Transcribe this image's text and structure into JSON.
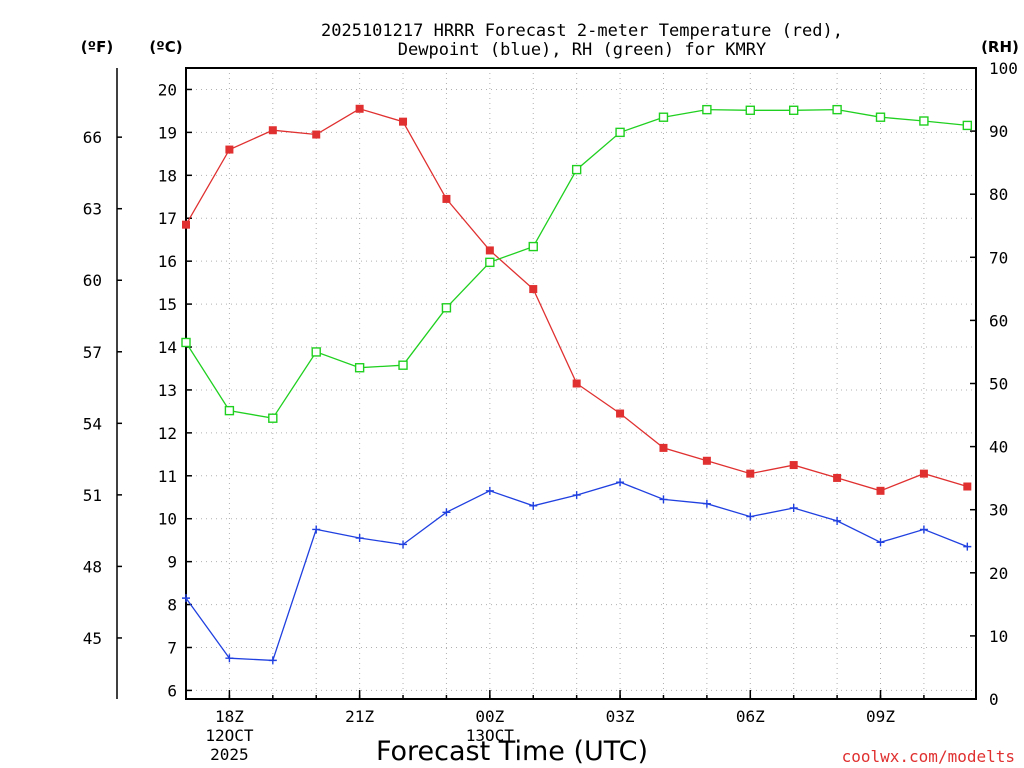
{
  "chart_data": {
    "type": "line",
    "title_line1": "2025101217 HRRR Forecast 2-meter Temperature (red),",
    "title_line2": "Dewpoint (blue), RH (green) for KMRY",
    "xlabel": "Forecast Time (UTC)",
    "credit": "coolwx.com/modelts",
    "units": {
      "fahrenheit": "(ºF)",
      "celsius": "(ºC)",
      "rh": "(RH)"
    },
    "x_hours": [
      0,
      1,
      2,
      3,
      4,
      5,
      6,
      7,
      8,
      9,
      10,
      11,
      12,
      13,
      14,
      15,
      16,
      17,
      18
    ],
    "xlim": [
      0,
      18.2
    ],
    "x_ticks": [
      {
        "hour": 1,
        "label": "18Z",
        "sub1": "12OCT",
        "sub2": "2025"
      },
      {
        "hour": 4,
        "label": "21Z",
        "sub1": "",
        "sub2": ""
      },
      {
        "hour": 7,
        "label": "00Z",
        "sub1": "13OCT",
        "sub2": ""
      },
      {
        "hour": 10,
        "label": "03Z",
        "sub1": "",
        "sub2": ""
      },
      {
        "hour": 13,
        "label": "06Z",
        "sub1": "",
        "sub2": ""
      },
      {
        "hour": 16,
        "label": "09Z",
        "sub1": "",
        "sub2": ""
      }
    ],
    "ylim_c": [
      5.8,
      20.5
    ],
    "y_ticks_c": [
      "6",
      "7",
      "8",
      "9",
      "10",
      "11",
      "12",
      "13",
      "14",
      "15",
      "16",
      "17",
      "18",
      "19",
      "20"
    ],
    "y_ticks_f": [
      "45",
      "48",
      "51",
      "54",
      "57",
      "60",
      "63",
      "66"
    ],
    "ylim_rh": [
      0,
      100
    ],
    "y_ticks_rh": [
      "0",
      "10",
      "20",
      "30",
      "40",
      "50",
      "60",
      "70",
      "80",
      "90",
      "100"
    ],
    "series": [
      {
        "name": "Temperature",
        "color": "#e03030",
        "marker": "filled-square",
        "values": [
          16.85,
          18.6,
          19.05,
          18.95,
          19.55,
          19.25,
          17.45,
          16.25,
          15.35,
          13.15,
          12.45,
          11.65,
          11.35,
          11.05,
          11.25,
          10.95,
          10.65,
          11.05,
          10.75
        ]
      },
      {
        "name": "Dewpoint",
        "color": "#2040e0",
        "marker": "plus",
        "values": [
          8.15,
          6.75,
          6.7,
          9.75,
          9.55,
          9.4,
          10.15,
          10.65,
          10.3,
          10.55,
          10.85,
          10.45,
          10.35,
          10.05,
          10.25,
          9.95,
          9.45,
          9.75,
          9.35
        ]
      },
      {
        "name": "RH",
        "color": "#20d020",
        "marker": "open-square",
        "values": [
          56.5,
          45.7,
          44.5,
          55,
          52.5,
          52.9,
          62,
          69.2,
          71.7,
          83.9,
          89.8,
          92.2,
          93.4,
          93.3,
          93.3,
          93.4,
          92.2,
          91.6,
          90.9
        ]
      }
    ]
  }
}
